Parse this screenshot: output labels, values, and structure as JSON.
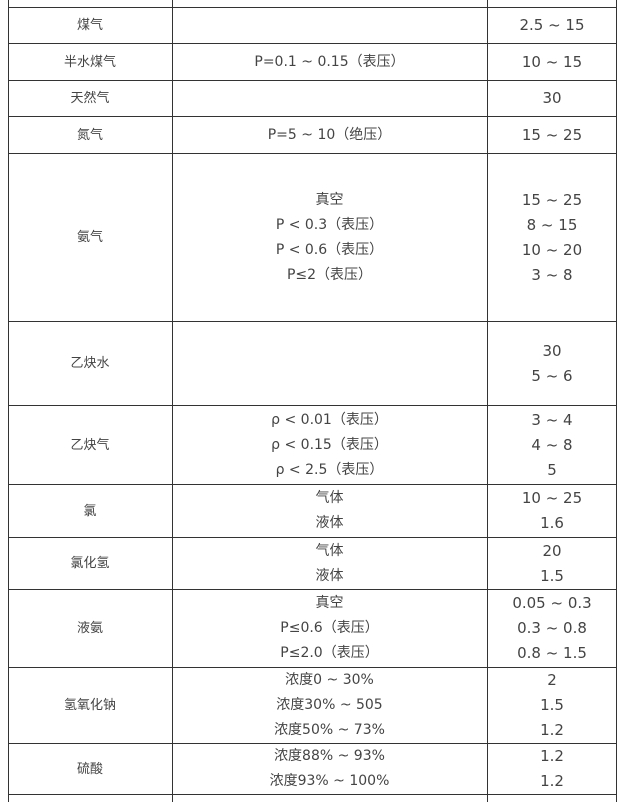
{
  "table": {
    "rows": [
      {
        "medium": "煤气",
        "conditions": [],
        "velocities": [
          "2.5 ~ 15"
        ]
      },
      {
        "medium": "半水煤气",
        "conditions": [
          "P=0.1 ~ 0.15（表压）"
        ],
        "velocities": [
          "10 ~ 15"
        ]
      },
      {
        "medium": "天然气",
        "conditions": [],
        "velocities": [
          "30"
        ]
      },
      {
        "medium": "氮气",
        "conditions": [
          "P=5 ~ 10（绝压）"
        ],
        "velocities": [
          "15 ~ 25"
        ]
      },
      {
        "medium": "氨气",
        "conditions": [
          "真空",
          "P < 0.3（表压）",
          "P < 0.6（表压）",
          "P≤2（表压）"
        ],
        "velocities": [
          "15 ~ 25",
          "8 ~ 15",
          "10 ~ 20",
          "3 ~ 8"
        ]
      },
      {
        "medium": "乙炔水",
        "conditions": [],
        "velocities": [
          "30",
          "5 ~ 6"
        ]
      },
      {
        "medium": "乙炔气",
        "conditions": [
          "ρ < 0.01（表压）",
          "ρ < 0.15（表压）",
          "ρ < 2.5（表压）"
        ],
        "velocities": [
          "3 ~ 4",
          "4 ~ 8",
          "5"
        ]
      },
      {
        "medium": "氯",
        "conditions": [
          "气体",
          "液体"
        ],
        "velocities": [
          "10 ~ 25",
          "1.6"
        ]
      },
      {
        "medium": "氯化氢",
        "conditions": [
          "气体",
          "液体"
        ],
        "velocities": [
          "20",
          "1.5"
        ]
      },
      {
        "medium": "液氨",
        "conditions": [
          "真空",
          "P≤0.6（表压）",
          "P≤2.0（表压）"
        ],
        "velocities": [
          "0.05 ~ 0.3",
          "0.3 ~ 0.8",
          "0.8 ~ 1.5"
        ]
      },
      {
        "medium": "氢氧化钠",
        "conditions": [
          "浓度0 ~ 30%",
          "浓度30% ~ 505",
          "浓度50% ~ 73%"
        ],
        "velocities": [
          "2",
          "1.5",
          "1.2"
        ]
      },
      {
        "medium": "硫酸",
        "conditions": [
          "浓度88% ~ 93%",
          "浓度93% ~ 100%"
        ],
        "velocities": [
          "1.2",
          "1.2"
        ]
      }
    ]
  }
}
